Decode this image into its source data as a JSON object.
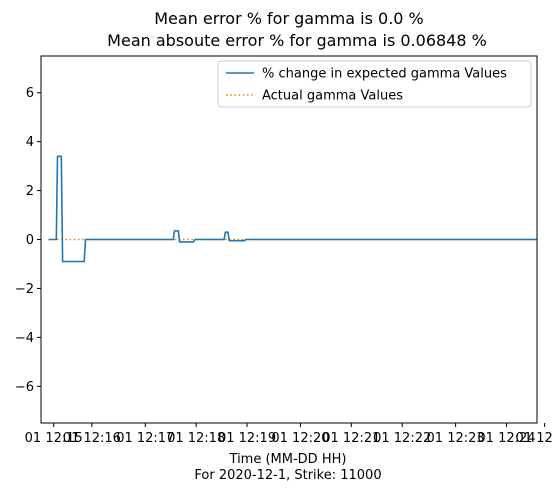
{
  "chart_data": {
    "type": "line",
    "title": "Mean error % for gamma is 0.0 %",
    "subtitle": "Mean absoute error % for gamma is 0.06848 %",
    "xlabel": "Time (MM-DD HH)",
    "xlabel_sub": "For 2020-12-1, Strike: 11000",
    "ylabel": "",
    "xlim": [
      0,
      19.5
    ],
    "ylim": [
      -7.5,
      7.5
    ],
    "xticks": [
      {
        "value": 0.5,
        "label": "01 12:15"
      },
      {
        "value": 2.0,
        "label": "01 12:16"
      },
      {
        "value": 4.1,
        "label": "01 12:17"
      },
      {
        "value": 6.1,
        "label": "01 12:18"
      },
      {
        "value": 8.1,
        "label": "01 12:19"
      },
      {
        "value": 10.2,
        "label": "01 12:20"
      },
      {
        "value": 12.2,
        "label": "01 12:21"
      },
      {
        "value": 14.2,
        "label": "01 12:22"
      },
      {
        "value": 16.3,
        "label": "01 12:23"
      },
      {
        "value": 18.3,
        "label": "01 12:24"
      },
      {
        "value": 19.8,
        "label": "01 12:25"
      }
    ],
    "yticks": [
      {
        "value": 6,
        "label": "6"
      },
      {
        "value": 4,
        "label": "4"
      },
      {
        "value": 2,
        "label": "2"
      },
      {
        "value": 0,
        "label": "0"
      },
      {
        "value": -2,
        "label": "−2"
      },
      {
        "value": -4,
        "label": "−4"
      },
      {
        "value": -6,
        "label": "−6"
      }
    ],
    "grid": false,
    "legend_position": "top-right",
    "series": [
      {
        "name": "% change in expected gamma Values",
        "style": "solid",
        "color": "#1f77b4",
        "x": [
          0.3,
          0.6,
          0.65,
          0.8,
          0.85,
          1.2,
          1.6,
          1.7,
          1.75,
          5.2,
          5.25,
          5.4,
          5.45,
          6.0,
          6.05,
          7.2,
          7.25,
          7.35,
          7.4,
          8.0,
          8.05,
          19.8
        ],
        "y": [
          0,
          0,
          3.4,
          3.4,
          -0.9,
          -0.9,
          -0.9,
          -0.9,
          0,
          0,
          0.35,
          0.35,
          -0.1,
          -0.1,
          0,
          0,
          0.3,
          0.3,
          -0.05,
          -0.05,
          0,
          0
        ]
      },
      {
        "name": "Actual gamma Values",
        "style": "dotted",
        "color": "#ff7f0e",
        "x": [
          0.3,
          19.8
        ],
        "y": [
          0,
          0
        ]
      }
    ]
  }
}
